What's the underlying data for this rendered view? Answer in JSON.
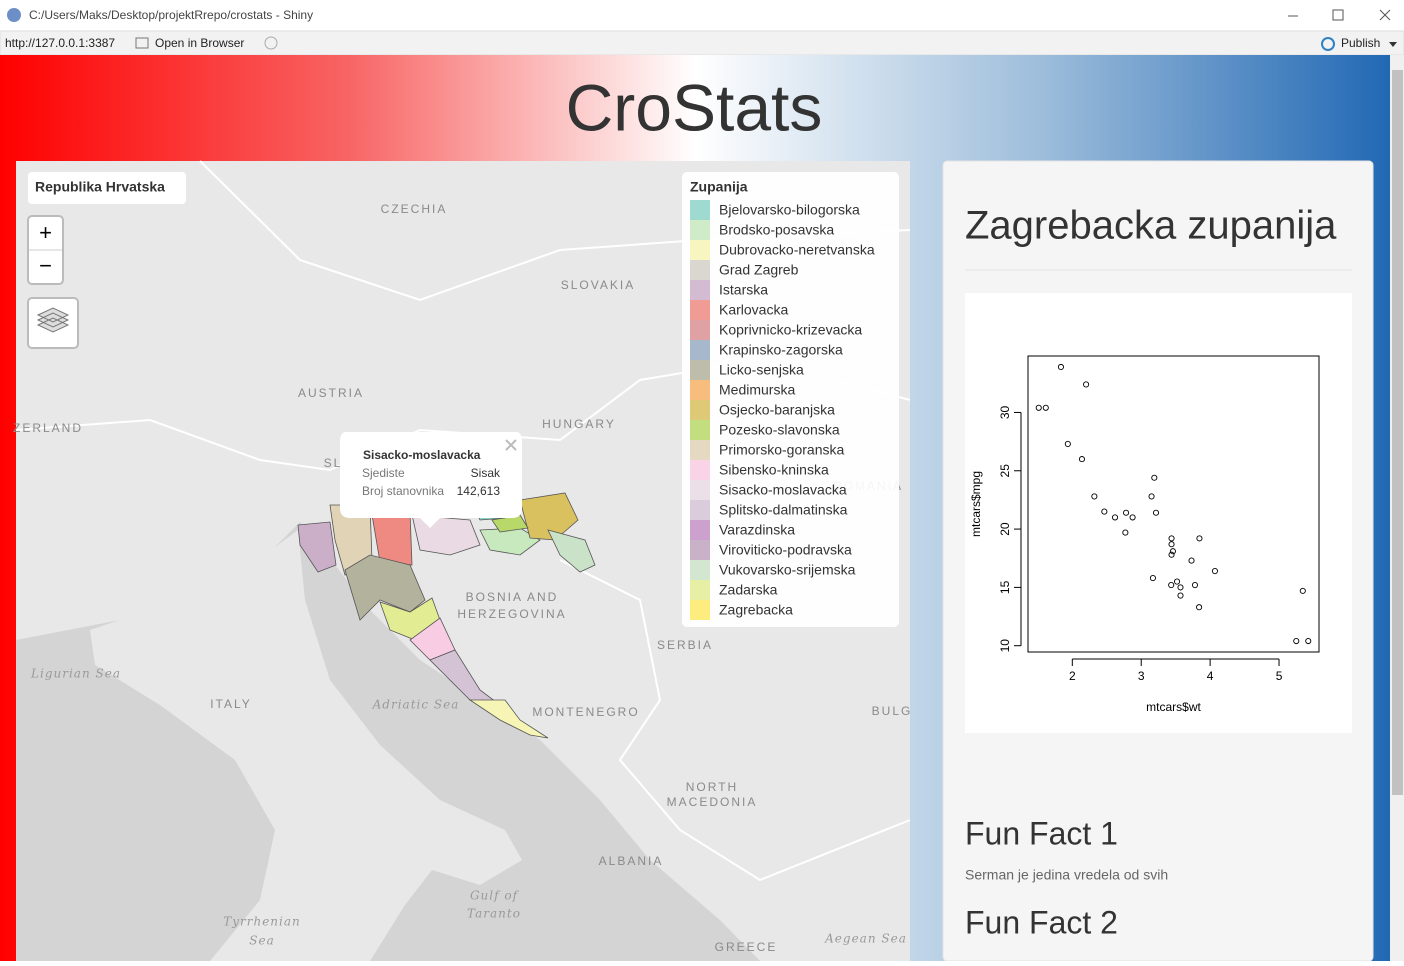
{
  "window": {
    "title": "C:/Users/Maks/Desktop/projektRrepo/crostats - Shiny",
    "url": "http://127.0.0.1:3387",
    "open_in_browser": "Open in Browser",
    "publish": "Publish"
  },
  "header": {
    "title": "CroStats"
  },
  "map": {
    "control_title": "Republika Hrvatska",
    "zoom_in": "+",
    "zoom_out": "−",
    "labels": [
      "CZECHIA",
      "SLOVAKIA",
      "AUSTRIA",
      "HUNGARY",
      "ZERLAND",
      "SL",
      "ROMANIA",
      "BOSNIA AND",
      "HERZEGOVINA",
      "SERBIA",
      "MONTENEGRO",
      "ITALY",
      "BULG",
      "NORTH",
      "MACEDONIA",
      "ALBANIA",
      "GREECE",
      "Ligurian Sea",
      "Adriatic Sea",
      "Gulf of",
      "Taranto",
      "Tyrrhenian",
      "Sea",
      "Aegean Sea"
    ],
    "legend": {
      "title": "Zupanija",
      "items": [
        {
          "label": "Bjelovarsko-bilogorska",
          "color": "#8dd3c7"
        },
        {
          "label": "Brodsko-posavska",
          "color": "#c8e8bd"
        },
        {
          "label": "Dubrovacko-neretvanska",
          "color": "#f6f5b5"
        },
        {
          "label": "Grad Zagreb",
          "color": "#d4d0c9"
        },
        {
          "label": "Istarska",
          "color": "#cbafc9"
        },
        {
          "label": "Karlovacka",
          "color": "#ee8a82"
        },
        {
          "label": "Koprivnicko-krizevacka",
          "color": "#d99193"
        },
        {
          "label": "Krapinsko-zagorska",
          "color": "#98abc3"
        },
        {
          "label": "Licko-senjska",
          "color": "#b3b29c"
        },
        {
          "label": "Medimurska",
          "color": "#f5b266"
        },
        {
          "label": "Osjecko-baranjska",
          "color": "#d8c15e"
        },
        {
          "label": "Pozesko-slavonska",
          "color": "#b8d869"
        },
        {
          "label": "Primorsko-goranska",
          "color": "#e0d3b6"
        },
        {
          "label": "Sibensko-kninska",
          "color": "#f8cde3"
        },
        {
          "label": "Sisacko-moslavacka",
          "color": "#e9dae4"
        },
        {
          "label": "Splitsko-dalmatinska",
          "color": "#d4c3d5"
        },
        {
          "label": "Varazdinska",
          "color": "#c490c4"
        },
        {
          "label": "Viroviticko-podravska",
          "color": "#c0a5bd"
        },
        {
          "label": "Vukovarsko-srijemska",
          "color": "#cae2c8"
        },
        {
          "label": "Zadarska",
          "color": "#e2ec93"
        },
        {
          "label": "Zagrebacka",
          "color": "#fde967"
        }
      ]
    },
    "popup": {
      "title": "Sisacko-moslavacka",
      "rows": [
        [
          "Sjediste",
          "Sisak"
        ],
        [
          "Broj stanovnika",
          "142,613"
        ]
      ]
    }
  },
  "panel": {
    "title": "Zagrebacka zupanija",
    "facts": [
      {
        "title": "Fun Fact 1",
        "text": "Serman je jedina vredela od svih"
      },
      {
        "title": "Fun Fact 2"
      }
    ]
  },
  "chart_data": {
    "type": "scatter",
    "x_label": "mtcars$wt",
    "y_label": "mtcars$mpg",
    "x": [
      2.62,
      2.875,
      2.32,
      3.215,
      3.44,
      3.46,
      3.57,
      3.19,
      3.15,
      3.44,
      3.44,
      4.07,
      3.73,
      3.78,
      5.25,
      5.424,
      5.345,
      2.2,
      1.615,
      1.835,
      2.465,
      3.52,
      3.435,
      3.84,
      3.845,
      1.935,
      2.14,
      1.513,
      3.17,
      2.77,
      3.57,
      2.78
    ],
    "values": [
      21,
      21,
      22.8,
      21.4,
      18.7,
      18.1,
      14.3,
      24.4,
      22.8,
      19.2,
      17.8,
      16.4,
      17.3,
      15.2,
      10.4,
      10.4,
      14.7,
      32.4,
      30.4,
      33.9,
      21.5,
      15.5,
      15.2,
      13.3,
      19.2,
      27.3,
      26,
      30.4,
      15.8,
      19.7,
      15,
      21.4
    ],
    "xlim": [
      1.357,
      5.58
    ],
    "ylim": [
      9.46,
      34.84
    ],
    "xticks": [
      2,
      3,
      4,
      5
    ],
    "yticks": [
      10,
      15,
      20,
      25,
      30
    ],
    "color": "#000000"
  }
}
